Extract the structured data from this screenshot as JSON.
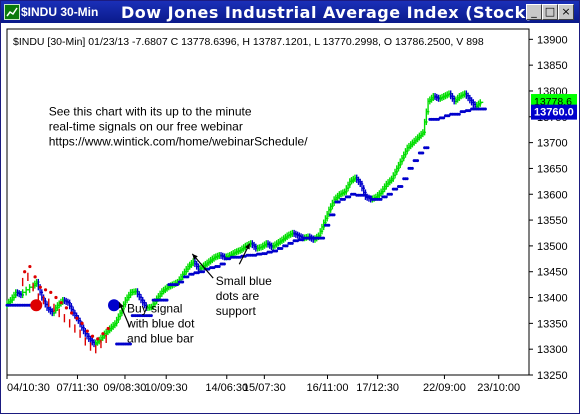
{
  "window": {
    "title": "$INDU 30-Min",
    "chart_title": "Dow Jones Industrial Average Index (Stock)",
    "buttons": {
      "minimize": "_",
      "maximize": "□",
      "close": "×"
    }
  },
  "colors": {
    "up": "#00dd00",
    "down": "#0000cc",
    "red": "#dd0000",
    "blue_dot": "#0000cc",
    "price_box_bg": "#0000cc",
    "price_box_text": "#ffffff",
    "green_box": "#00ff00"
  },
  "chart_data": {
    "type": "line",
    "header": "$INDU [30-Min] 01/23/13  -7.6807 C 13778.6396, H 13787.1201, L 13770.2998, O 13786.2500, V 898",
    "ylim": [
      13250,
      13920
    ],
    "y_ticks": [
      13250,
      13300,
      13350,
      13400,
      13450,
      13500,
      13550,
      13600,
      13650,
      13700,
      13750,
      13800,
      13850,
      13900
    ],
    "x_ticks": [
      "04/10:30",
      "07/11:30",
      "09/08:30",
      "10/09:30",
      "14/06:30",
      "15/07:30",
      "16/11:00",
      "17/12:30",
      "22/09:00",
      "23/10:00"
    ],
    "x_tick_pos": [
      0.0,
      0.135,
      0.226,
      0.305,
      0.421,
      0.493,
      0.614,
      0.71,
      0.838,
      0.942
    ],
    "last_price_label": "13760.0",
    "last_price": 13760,
    "green_box_value": 13778.6,
    "green_box_label": "13778.6",
    "price_path": [
      [
        0.0,
        13385
      ],
      [
        0.01,
        13395
      ],
      [
        0.02,
        13410
      ],
      [
        0.03,
        13405
      ],
      [
        0.05,
        13420
      ],
      [
        0.06,
        13430
      ],
      [
        0.07,
        13400
      ],
      [
        0.08,
        13380
      ],
      [
        0.09,
        13370
      ],
      [
        0.1,
        13385
      ],
      [
        0.11,
        13395
      ],
      [
        0.12,
        13390
      ],
      [
        0.13,
        13370
      ],
      [
        0.14,
        13355
      ],
      [
        0.15,
        13335
      ],
      [
        0.16,
        13320
      ],
      [
        0.17,
        13310
      ],
      [
        0.18,
        13318
      ],
      [
        0.19,
        13330
      ],
      [
        0.2,
        13340
      ],
      [
        0.21,
        13350
      ],
      [
        0.22,
        13370
      ],
      [
        0.23,
        13395
      ],
      [
        0.24,
        13410
      ],
      [
        0.25,
        13412
      ],
      [
        0.26,
        13395
      ],
      [
        0.27,
        13380
      ],
      [
        0.28,
        13382
      ],
      [
        0.29,
        13398
      ],
      [
        0.3,
        13412
      ],
      [
        0.31,
        13420
      ],
      [
        0.32,
        13425
      ],
      [
        0.33,
        13430
      ],
      [
        0.34,
        13445
      ],
      [
        0.35,
        13460
      ],
      [
        0.36,
        13470
      ],
      [
        0.37,
        13455
      ],
      [
        0.38,
        13462
      ],
      [
        0.39,
        13470
      ],
      [
        0.4,
        13478
      ],
      [
        0.41,
        13482
      ],
      [
        0.42,
        13478
      ],
      [
        0.43,
        13482
      ],
      [
        0.44,
        13488
      ],
      [
        0.45,
        13492
      ],
      [
        0.46,
        13500
      ],
      [
        0.47,
        13505
      ],
      [
        0.48,
        13495
      ],
      [
        0.49,
        13498
      ],
      [
        0.5,
        13505
      ],
      [
        0.51,
        13498
      ],
      [
        0.52,
        13505
      ],
      [
        0.53,
        13512
      ],
      [
        0.54,
        13520
      ],
      [
        0.55,
        13525
      ],
      [
        0.56,
        13520
      ],
      [
        0.57,
        13515
      ],
      [
        0.58,
        13518
      ],
      [
        0.59,
        13512
      ],
      [
        0.6,
        13520
      ],
      [
        0.61,
        13545
      ],
      [
        0.62,
        13570
      ],
      [
        0.63,
        13590
      ],
      [
        0.64,
        13600
      ],
      [
        0.65,
        13605
      ],
      [
        0.66,
        13625
      ],
      [
        0.67,
        13632
      ],
      [
        0.68,
        13620
      ],
      [
        0.69,
        13595
      ],
      [
        0.7,
        13590
      ],
      [
        0.71,
        13595
      ],
      [
        0.72,
        13605
      ],
      [
        0.73,
        13620
      ],
      [
        0.74,
        13630
      ],
      [
        0.75,
        13650
      ],
      [
        0.76,
        13670
      ],
      [
        0.77,
        13690
      ],
      [
        0.78,
        13700
      ],
      [
        0.79,
        13710
      ],
      [
        0.8,
        13720
      ],
      [
        0.81,
        13780
      ],
      [
        0.82,
        13790
      ],
      [
        0.83,
        13785
      ],
      [
        0.84,
        13790
      ],
      [
        0.85,
        13795
      ],
      [
        0.86,
        13780
      ],
      [
        0.87,
        13790
      ],
      [
        0.88,
        13795
      ],
      [
        0.89,
        13782
      ],
      [
        0.9,
        13770
      ],
      [
        0.91,
        13778
      ]
    ],
    "red_segment": [
      [
        0.03,
        13430
      ],
      [
        0.04,
        13440
      ],
      [
        0.05,
        13420
      ],
      [
        0.06,
        13400
      ],
      [
        0.07,
        13395
      ],
      [
        0.08,
        13390
      ],
      [
        0.09,
        13380
      ],
      [
        0.1,
        13370
      ],
      [
        0.11,
        13360
      ],
      [
        0.12,
        13350
      ],
      [
        0.13,
        13340
      ],
      [
        0.14,
        13330
      ],
      [
        0.15,
        13315
      ],
      [
        0.16,
        13305
      ],
      [
        0.17,
        13300
      ],
      [
        0.18,
        13310
      ],
      [
        0.19,
        13320
      ]
    ],
    "support_dots": [
      [
        0.0,
        13385
      ],
      [
        0.01,
        13385
      ],
      [
        0.02,
        13385
      ],
      [
        0.03,
        13385
      ],
      [
        0.04,
        13385
      ],
      [
        0.21,
        13310
      ],
      [
        0.22,
        13310
      ],
      [
        0.23,
        13310
      ],
      [
        0.24,
        13365
      ],
      [
        0.25,
        13365
      ],
      [
        0.26,
        13365
      ],
      [
        0.27,
        13365
      ],
      [
        0.28,
        13395
      ],
      [
        0.29,
        13395
      ],
      [
        0.3,
        13395
      ],
      [
        0.31,
        13425
      ],
      [
        0.32,
        13425
      ],
      [
        0.33,
        13430
      ],
      [
        0.34,
        13440
      ],
      [
        0.35,
        13445
      ],
      [
        0.36,
        13448
      ],
      [
        0.37,
        13450
      ],
      [
        0.38,
        13455
      ],
      [
        0.39,
        13458
      ],
      [
        0.4,
        13460
      ],
      [
        0.41,
        13465
      ],
      [
        0.42,
        13475
      ],
      [
        0.43,
        13478
      ],
      [
        0.44,
        13478
      ],
      [
        0.45,
        13480
      ],
      [
        0.46,
        13482
      ],
      [
        0.47,
        13482
      ],
      [
        0.48,
        13484
      ],
      [
        0.49,
        13485
      ],
      [
        0.5,
        13488
      ],
      [
        0.51,
        13490
      ],
      [
        0.52,
        13495
      ],
      [
        0.53,
        13500
      ],
      [
        0.54,
        13505
      ],
      [
        0.55,
        13510
      ],
      [
        0.56,
        13512
      ],
      [
        0.57,
        13515
      ],
      [
        0.58,
        13515
      ],
      [
        0.59,
        13515
      ],
      [
        0.6,
        13515
      ],
      [
        0.61,
        13540
      ],
      [
        0.62,
        13560
      ],
      [
        0.63,
        13585
      ],
      [
        0.64,
        13590
      ],
      [
        0.65,
        13595
      ],
      [
        0.66,
        13600
      ],
      [
        0.67,
        13598
      ],
      [
        0.68,
        13598
      ],
      [
        0.69,
        13595
      ],
      [
        0.7,
        13590
      ],
      [
        0.71,
        13590
      ],
      [
        0.72,
        13595
      ],
      [
        0.73,
        13600
      ],
      [
        0.74,
        13610
      ],
      [
        0.75,
        13615
      ],
      [
        0.76,
        13630
      ],
      [
        0.77,
        13650
      ],
      [
        0.78,
        13665
      ],
      [
        0.79,
        13680
      ],
      [
        0.8,
        13690
      ],
      [
        0.81,
        13745
      ],
      [
        0.82,
        13745
      ],
      [
        0.83,
        13748
      ],
      [
        0.84,
        13752
      ],
      [
        0.85,
        13755
      ],
      [
        0.86,
        13755
      ],
      [
        0.87,
        13760
      ],
      [
        0.88,
        13762
      ],
      [
        0.89,
        13765
      ],
      [
        0.9,
        13765
      ],
      [
        0.91,
        13765
      ]
    ],
    "signal_dots": [
      {
        "x": 0.056,
        "y": 13385,
        "color": "#dd0000"
      },
      {
        "x": 0.205,
        "y": 13385,
        "color": "#0000cc"
      }
    ],
    "annotations": [
      {
        "lines": [
          "See this chart with its up to the minute",
          "real-time signals on our free webinar",
          "https://www.wintick.com/home/webinarSchedule/"
        ],
        "x": 0.08,
        "y": 0.25
      },
      {
        "lines": [
          "Buy signal",
          "with blue dot",
          "and blue bar"
        ],
        "x": 0.23,
        "y": 0.82
      },
      {
        "lines": [
          "Small blue",
          "dots are",
          "support"
        ],
        "x": 0.4,
        "y": 0.74
      }
    ],
    "arrows": [
      {
        "from": [
          0.235,
          0.86
        ],
        "to": [
          0.215,
          0.79
        ]
      },
      {
        "from": [
          0.395,
          0.72
        ],
        "to": [
          0.355,
          0.65
        ]
      },
      {
        "from": [
          0.445,
          0.68
        ],
        "to": [
          0.465,
          0.62
        ]
      }
    ]
  }
}
